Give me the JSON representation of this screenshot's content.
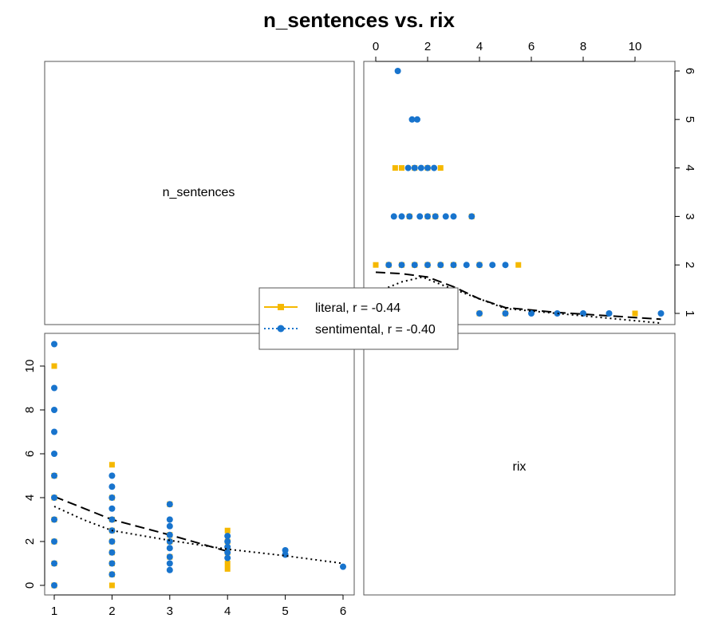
{
  "chart_data": {
    "type": "scatter",
    "title": "n_sentences vs. rix",
    "variables": [
      "n_sentences",
      "rix"
    ],
    "axes": {
      "n_sentences": {
        "range": [
          1,
          6
        ],
        "ticks": [
          "1",
          "2",
          "3",
          "4",
          "5",
          "6"
        ]
      },
      "rix": {
        "range": [
          0,
          11
        ],
        "ticks": [
          "0",
          "2",
          "4",
          "6",
          "8",
          "10"
        ]
      }
    },
    "legend": {
      "placement": "center"
    },
    "series": [
      {
        "name": "literal, r = -0.44",
        "color": "#F5B800",
        "marker": "square",
        "line": "dashed",
        "points": [
          [
            1,
            10
          ],
          [
            1,
            5
          ],
          [
            1,
            4
          ],
          [
            1,
            3
          ],
          [
            1,
            2
          ],
          [
            1,
            1
          ],
          [
            1,
            0
          ],
          [
            2,
            5.5
          ],
          [
            2,
            4
          ],
          [
            2,
            3
          ],
          [
            2,
            2.5
          ],
          [
            2,
            2
          ],
          [
            2,
            1.5
          ],
          [
            2,
            1
          ],
          [
            2,
            0.5
          ],
          [
            2,
            0
          ],
          [
            3,
            3.7
          ],
          [
            3,
            2.3
          ],
          [
            3,
            2
          ],
          [
            3,
            1.3
          ],
          [
            4,
            2.5
          ],
          [
            4,
            2
          ],
          [
            4,
            1.5
          ],
          [
            4,
            1
          ],
          [
            4,
            0.75
          ]
        ],
        "smooth": [
          [
            1,
            4.05
          ],
          [
            2,
            3.0
          ],
          [
            3,
            2.3
          ],
          [
            4,
            1.55
          ]
        ]
      },
      {
        "name": "sentimental, r = -0.40",
        "color": "#1874CD",
        "marker": "circle",
        "line": "dotted",
        "points": [
          [
            1,
            11
          ],
          [
            1,
            9
          ],
          [
            1,
            8
          ],
          [
            1,
            7
          ],
          [
            1,
            6
          ],
          [
            1,
            5
          ],
          [
            1,
            4
          ],
          [
            1,
            3
          ],
          [
            1,
            2
          ],
          [
            1,
            1
          ],
          [
            1,
            0
          ],
          [
            2,
            5
          ],
          [
            2,
            4.5
          ],
          [
            2,
            4
          ],
          [
            2,
            3.5
          ],
          [
            2,
            3
          ],
          [
            2,
            2.5
          ],
          [
            2,
            2
          ],
          [
            2,
            1.5
          ],
          [
            2,
            1
          ],
          [
            2,
            0.5
          ],
          [
            3,
            3.7
          ],
          [
            3,
            3
          ],
          [
            3,
            2.7
          ],
          [
            3,
            2.3
          ],
          [
            3,
            2
          ],
          [
            3,
            1.7
          ],
          [
            3,
            1.3
          ],
          [
            3,
            1
          ],
          [
            3,
            0.7
          ],
          [
            4,
            2.25
          ],
          [
            4,
            2
          ],
          [
            4,
            1.75
          ],
          [
            4,
            1.5
          ],
          [
            4,
            1.25
          ],
          [
            5,
            1.6
          ],
          [
            5,
            1.4
          ],
          [
            6,
            0.85
          ]
        ],
        "smooth": [
          [
            1,
            3.6
          ],
          [
            1.5,
            3.0
          ],
          [
            2,
            2.5
          ],
          [
            3,
            2.05
          ],
          [
            4,
            1.65
          ],
          [
            5,
            1.35
          ],
          [
            6,
            1.0
          ]
        ]
      }
    ]
  }
}
